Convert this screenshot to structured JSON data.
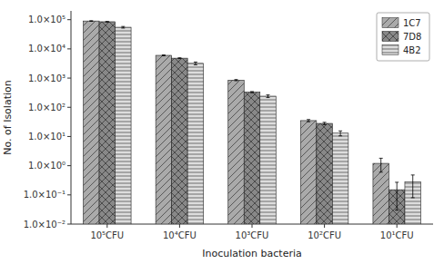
{
  "chart_data": {
    "type": "bar",
    "xlabel": "Inoculation bacteria",
    "ylabel": "No. of Isolation",
    "categories": [
      "10⁵CFU",
      "10⁴CFU",
      "10³CFU",
      "10²CFU",
      "10¹CFU"
    ],
    "series": [
      {
        "name": "1C7",
        "color": "#aaaaaa",
        "values": [
          90000,
          6000,
          850,
          35,
          1.2
        ],
        "errors": [
          2000,
          200,
          40,
          3,
          0.6
        ]
      },
      {
        "name": "7D8",
        "color": "#888888",
        "values": [
          85000,
          4800,
          330,
          28,
          0.15
        ],
        "errors": [
          1500,
          150,
          15,
          2.5,
          0.12
        ]
      },
      {
        "name": "4B2",
        "color": "#dddddd",
        "values": [
          55000,
          3200,
          240,
          13,
          0.28
        ],
        "errors": [
          3500,
          350,
          25,
          2.5,
          0.2
        ]
      }
    ],
    "log": "y",
    "ylim": [
      0.01,
      200000
    ],
    "yticks": [
      {
        "value": 0.01,
        "label": "1.0×10⁻²"
      },
      {
        "value": 0.1,
        "label": "1.0×10⁻¹"
      },
      {
        "value": 1,
        "label": "1.0×10⁰"
      },
      {
        "value": 10,
        "label": "1.0×10¹"
      },
      {
        "value": 100,
        "label": "1.0×10²"
      },
      {
        "value": 1000,
        "label": "1.0×10³"
      },
      {
        "value": 10000,
        "label": "1.0×10⁴"
      },
      {
        "value": 100000,
        "label": "1.0×10⁵"
      }
    ],
    "grid": false,
    "legend": "upper right"
  }
}
